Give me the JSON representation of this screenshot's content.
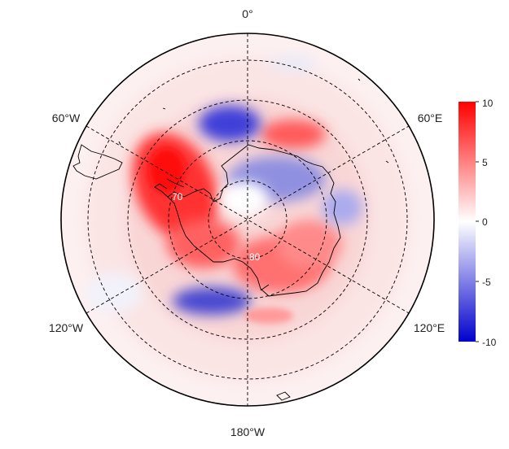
{
  "map": {
    "projection": "south-polar-stereographic",
    "longitude_labels": {
      "top": "0°",
      "upper_right": "60°E",
      "lower_right": "120°E",
      "bottom": "180°W",
      "lower_left": "120°W",
      "upper_left": "60°W"
    },
    "latitude_labels": [
      "70",
      "80"
    ],
    "colorbar": {
      "min": -10,
      "max": 10,
      "ticks": [
        "10",
        "5",
        "0",
        "-5",
        "-10"
      ],
      "colormap": [
        "#0000cc",
        "#ffffff",
        "#ff0000"
      ]
    },
    "colors": {
      "positive": "#ff2a2a",
      "negative": "#3a3ad8",
      "coast": "#000000",
      "grid": "#000000"
    }
  }
}
